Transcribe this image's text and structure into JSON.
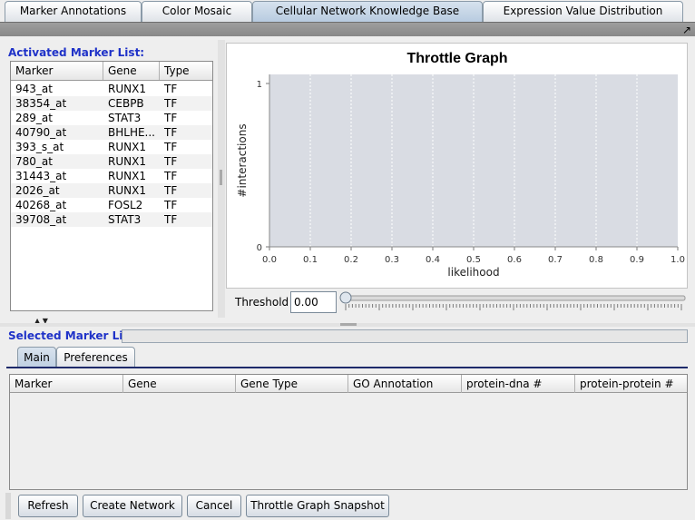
{
  "tabs": [
    "Marker Annotations",
    "Color Mosaic",
    "Cellular Network Knowledge Base",
    "Expression Value Distribution"
  ],
  "activated": {
    "label": "Activated Marker List:",
    "columns": [
      "Marker",
      "Gene",
      "Type"
    ],
    "rows": [
      [
        "943_at",
        "RUNX1",
        "TF"
      ],
      [
        "38354_at",
        "CEBPB",
        "TF"
      ],
      [
        "289_at",
        "STAT3",
        "TF"
      ],
      [
        "40790_at",
        "BHLHE...",
        "TF"
      ],
      [
        "393_s_at",
        "RUNX1",
        "TF"
      ],
      [
        "780_at",
        "RUNX1",
        "TF"
      ],
      [
        "31443_at",
        "RUNX1",
        "TF"
      ],
      [
        "2026_at",
        "RUNX1",
        "TF"
      ],
      [
        "40268_at",
        "FOSL2",
        "TF"
      ],
      [
        "39708_at",
        "STAT3",
        "TF"
      ]
    ]
  },
  "chart_data": {
    "type": "line",
    "title": "Throttle Graph",
    "xlabel": "likelihood",
    "ylabel": "#interactions",
    "x_ticks": [
      "0.0",
      "0.1",
      "0.2",
      "0.3",
      "0.4",
      "0.5",
      "0.6",
      "0.7",
      "0.8",
      "0.9",
      "1.0"
    ],
    "y_ticks": [
      "0",
      "1"
    ],
    "xlim": [
      0,
      1
    ],
    "ylim": [
      0,
      1
    ],
    "series": [],
    "grid": true
  },
  "threshold": {
    "label": "Threshold",
    "value": "0.00"
  },
  "selected": {
    "label": "Selected Marker List:",
    "subtabs": [
      "Main",
      "Preferences"
    ],
    "columns": [
      "Marker",
      "Gene",
      "Gene Type",
      "GO Annotation",
      "protein-dna #",
      "protein-protein #"
    ]
  },
  "buttons": [
    "Refresh",
    "Create Network",
    "Cancel",
    "Throttle Graph Snapshot"
  ],
  "colors": {
    "section_label": "#1f32c8",
    "plot_bg": "#d9dce3",
    "active_tab": "#c4d4e6"
  }
}
